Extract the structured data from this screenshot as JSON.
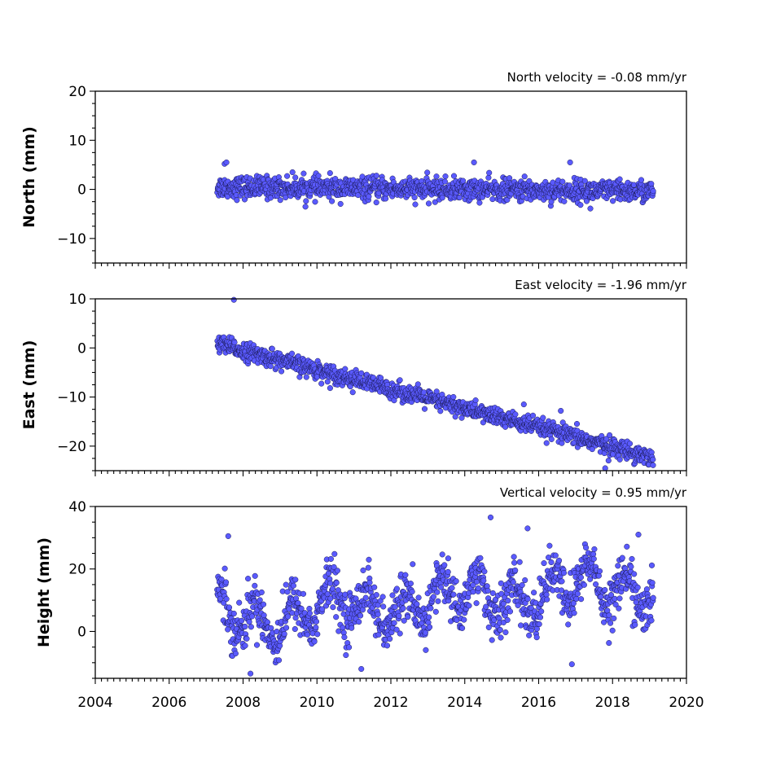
{
  "chart_data": [
    {
      "type": "scatter",
      "id": "north",
      "ylabel": "North (mm)",
      "annotation": "North velocity = -0.08 mm/yr",
      "xlim": [
        2004,
        2020
      ],
      "ylim": [
        -15,
        20
      ],
      "yticks": [
        -10,
        0,
        10,
        20
      ],
      "ytick_labels": [
        "−10",
        "0",
        "10",
        "20"
      ],
      "x_range": [
        2007.3,
        2019.1
      ],
      "trend": {
        "velocity_mm_per_yr": -0.08,
        "offset_mm": 0.5
      },
      "noise_sd_mm": 1.1,
      "outliers": [
        {
          "x": 2007.5,
          "y": 5.2
        },
        {
          "x": 2007.55,
          "y": 5.5
        },
        {
          "x": 2014.25,
          "y": 5.5
        },
        {
          "x": 2016.85,
          "y": 5.5
        },
        {
          "x": 2017.4,
          "y": -3.9
        }
      ],
      "color": "#5a5aff"
    },
    {
      "type": "scatter",
      "id": "east",
      "ylabel": "East (mm)",
      "annotation": "East velocity = -1.96 mm/yr",
      "xlim": [
        2004,
        2020
      ],
      "ylim": [
        -25,
        10
      ],
      "yticks": [
        -20,
        -10,
        0,
        10
      ],
      "ytick_labels": [
        "−20",
        "−10",
        "0",
        "10"
      ],
      "x_range": [
        2007.3,
        2019.1
      ],
      "trend": {
        "velocity_mm_per_yr": -1.96,
        "offset_mm": 0.8
      },
      "noise_sd_mm": 0.9,
      "outliers": [
        {
          "x": 2007.75,
          "y": 9.8
        },
        {
          "x": 2017.8,
          "y": -24.5
        },
        {
          "x": 2016.6,
          "y": -12.8
        },
        {
          "x": 2015.6,
          "y": -11.5
        }
      ],
      "color": "#5a5aff"
    },
    {
      "type": "scatter",
      "id": "height",
      "ylabel": "Height (mm)",
      "annotation": "Vertical velocity = 0.95 mm/yr",
      "xlabel_ticks": [
        "2004",
        "2006",
        "2008",
        "2010",
        "2012",
        "2014",
        "2016",
        "2018",
        "2020"
      ],
      "xticks": [
        2004,
        2006,
        2008,
        2010,
        2012,
        2014,
        2016,
        2018,
        2020
      ],
      "xlim": [
        2004,
        2020
      ],
      "ylim": [
        -15,
        40
      ],
      "yticks": [
        0,
        20,
        40
      ],
      "ytick_labels": [
        "0",
        "20",
        "40"
      ],
      "x_range": [
        2007.3,
        2019.1
      ],
      "trend": {
        "velocity_mm_per_yr": 0.95,
        "offset_mm": 4.0
      },
      "seasonal_amplitude_mm": 6.0,
      "noise_sd_mm": 4.0,
      "outliers": [
        {
          "x": 2007.6,
          "y": 30.5
        },
        {
          "x": 2014.7,
          "y": 36.5
        },
        {
          "x": 2015.7,
          "y": 33.0
        },
        {
          "x": 2018.7,
          "y": 31.0
        },
        {
          "x": 2008.2,
          "y": -13.5
        },
        {
          "x": 2016.9,
          "y": -10.5
        },
        {
          "x": 2011.2,
          "y": -12.0
        }
      ],
      "color": "#5a5aff"
    }
  ]
}
